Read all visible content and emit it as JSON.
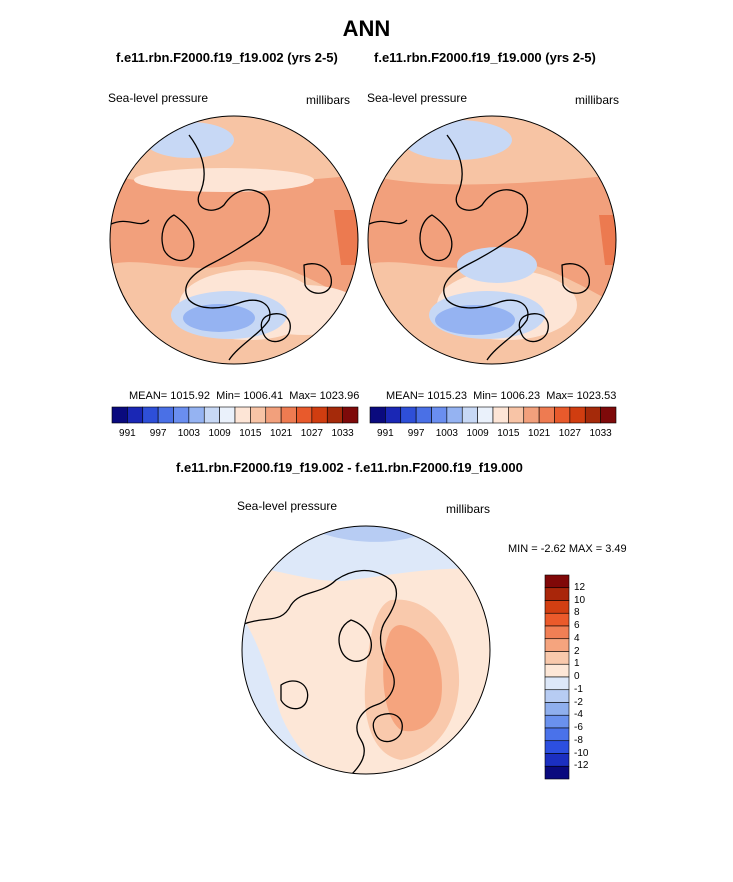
{
  "title": "ANN",
  "palettes": {
    "abs": [
      "#0a0a7e",
      "#1a27b5",
      "#2e4fd8",
      "#4a70e6",
      "#6a8ef0",
      "#95b3f2",
      "#c7d8f5",
      "#eaf1fb",
      "#fde5d6",
      "#f8c4a6",
      "#f2a07c",
      "#ee7b51",
      "#e85a2c",
      "#d03d10",
      "#a52a0a",
      "#7e0a0a"
    ],
    "diff": [
      "#0a0a7e",
      "#1b2fc1",
      "#2c4fe0",
      "#4a72ea",
      "#6a91ee",
      "#8fafee",
      "#b7ccf3",
      "#dde8f9",
      "#fde7d7",
      "#f9c9ac",
      "#f5a47e",
      "#f17f55",
      "#eb5a2b",
      "#d23f12",
      "#a9260a",
      "#800808"
    ]
  },
  "chart_data": [
    {
      "type": "heatmap",
      "projection": "polar stereographic (north)",
      "title": "f.e11.rbn.F2000.f19_f19.002 (yrs 2-5)",
      "left_label": "Sea-level pressure",
      "right_label": "millibars",
      "stats": {
        "mean_label": "MEAN=",
        "mean": "1015.92",
        "min_label": "Min=",
        "min": "1006.41",
        "max_label": "Max=",
        "max": "1023.96"
      },
      "colorbar": {
        "orientation": "horizontal",
        "tick_labels": [
          "991",
          "997",
          "1003",
          "1009",
          "1015",
          "1021",
          "1027",
          "1033"
        ]
      }
    },
    {
      "type": "heatmap",
      "projection": "polar stereographic (north)",
      "title": "f.e11.rbn.F2000.f19_f19.000 (yrs 2-5)",
      "left_label": "Sea-level pressure",
      "right_label": "millibars",
      "stats": {
        "mean_label": "MEAN=",
        "mean": "1015.23",
        "min_label": "Min=",
        "min": "1006.23",
        "max_label": "Max=",
        "max": "1023.53"
      },
      "colorbar": {
        "orientation": "horizontal",
        "tick_labels": [
          "991",
          "997",
          "1003",
          "1009",
          "1015",
          "1021",
          "1027",
          "1033"
        ]
      }
    },
    {
      "type": "heatmap",
      "projection": "polar stereographic (north)",
      "title": "f.e11.rbn.F2000.f19_f19.002 - f.e11.rbn.F2000.f19_f19.000",
      "left_label": "Sea-level pressure",
      "right_label": "millibars",
      "minmax_text": "MIN =  -2.62 MAX =  3.49",
      "colorbar": {
        "orientation": "vertical",
        "tick_labels": [
          "12",
          "10",
          "8",
          "6",
          "4",
          "2",
          "1",
          "0",
          "-1",
          "-2",
          "-4",
          "-6",
          "-8",
          "-10",
          "-12"
        ]
      }
    }
  ]
}
